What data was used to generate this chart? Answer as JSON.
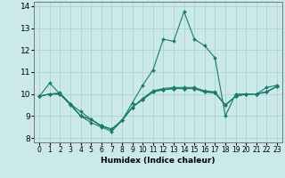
{
  "xlabel": "Humidex (Indice chaleur)",
  "xlim": [
    -0.5,
    23.5
  ],
  "ylim": [
    7.8,
    14.2
  ],
  "yticks": [
    8,
    9,
    10,
    11,
    12,
    13,
    14
  ],
  "xticks": [
    0,
    1,
    2,
    3,
    4,
    5,
    6,
    7,
    8,
    9,
    10,
    11,
    12,
    13,
    14,
    15,
    16,
    17,
    18,
    19,
    20,
    21,
    22,
    23
  ],
  "bg_color": "#cce9e9",
  "line_color": "#1a7a6e",
  "grid_color": "#aad4d4",
  "series": {
    "line1": [
      9.9,
      10.5,
      10.0,
      9.5,
      9.0,
      8.7,
      8.5,
      8.3,
      8.8,
      9.6,
      10.4,
      11.1,
      12.5,
      12.4,
      13.75,
      12.5,
      12.2,
      11.65,
      9.0,
      10.0,
      10.0,
      10.0,
      10.3,
      10.4
    ],
    "line2": [
      9.9,
      10.0,
      10.0,
      9.55,
      9.0,
      8.85,
      8.55,
      8.4,
      8.8,
      9.4,
      9.75,
      10.1,
      10.2,
      10.25,
      10.25,
      10.25,
      10.1,
      10.05,
      9.5,
      9.9,
      10.0,
      10.0,
      10.1,
      10.35
    ],
    "line3": [
      9.9,
      10.0,
      10.0,
      9.55,
      9.2,
      8.85,
      8.55,
      8.4,
      8.8,
      9.4,
      9.75,
      10.1,
      10.2,
      10.25,
      10.25,
      10.25,
      10.1,
      10.05,
      9.5,
      9.9,
      10.0,
      10.0,
      10.1,
      10.35
    ],
    "line4": [
      9.9,
      10.0,
      10.05,
      9.55,
      9.0,
      8.85,
      8.55,
      8.4,
      8.8,
      9.4,
      9.8,
      10.15,
      10.25,
      10.3,
      10.3,
      10.3,
      10.15,
      10.1,
      9.5,
      9.9,
      10.0,
      10.0,
      10.1,
      10.35
    ]
  }
}
